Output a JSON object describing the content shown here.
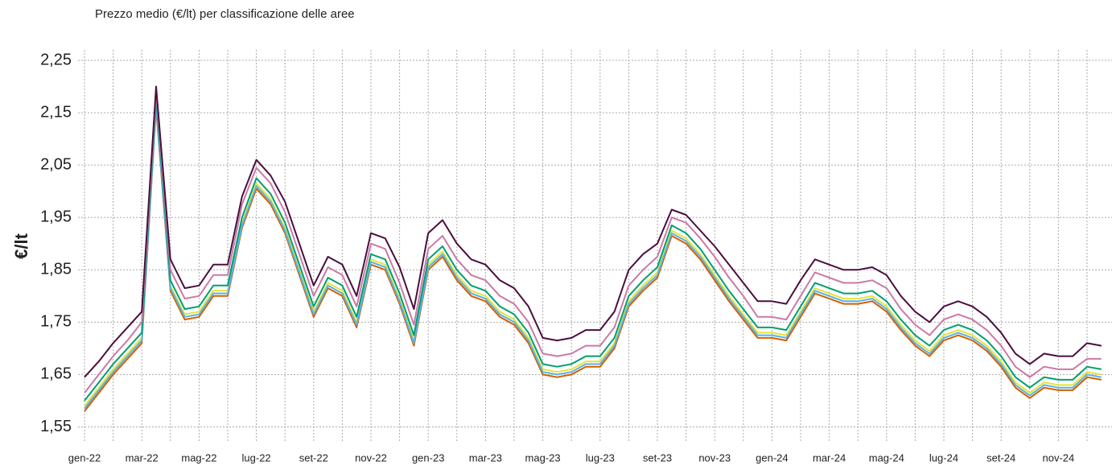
{
  "chart_data": {
    "type": "line",
    "title": "Prezzo medio (€/lt) per classificazione delle aree",
    "ylabel": "€/lt",
    "categories": [
      "gen-22",
      null,
      null,
      null,
      "mar-22",
      null,
      null,
      null,
      "mag-22",
      null,
      null,
      null,
      "lug-22",
      null,
      null,
      null,
      "set-22",
      null,
      null,
      null,
      "nov-22",
      null,
      null,
      null,
      "gen-23",
      null,
      null,
      null,
      "mar-23",
      null,
      null,
      null,
      "mag-23",
      null,
      null,
      null,
      "lug-23",
      null,
      null,
      null,
      "set-23",
      null,
      null,
      null,
      "nov-23",
      null,
      null,
      null,
      "gen-24",
      null,
      null,
      null,
      "mar-24",
      null,
      null,
      null,
      "mag-24",
      null,
      null,
      null,
      "lug-24",
      null,
      null,
      null,
      "set-24",
      null,
      null,
      null,
      "nov-24",
      null,
      null,
      null
    ],
    "ylim": [
      1.52,
      2.27
    ],
    "yticks": [
      {
        "value": 1.55,
        "label": "1,55"
      },
      {
        "value": 1.65,
        "label": "1,65"
      },
      {
        "value": 1.75,
        "label": "1,75"
      },
      {
        "value": 1.85,
        "label": "1,85"
      },
      {
        "value": 1.95,
        "label": "1,95"
      },
      {
        "value": 2.05,
        "label": "2,05"
      },
      {
        "value": 2.15,
        "label": "2,15"
      },
      {
        "value": 2.25,
        "label": "2,25"
      }
    ],
    "grid": true,
    "series": [
      {
        "color": "#d55e00",
        "values": [
          1.58,
          1.615,
          1.65,
          1.68,
          1.71,
          2.16,
          1.81,
          1.755,
          1.76,
          1.8,
          1.8,
          1.93,
          2.005,
          1.975,
          1.92,
          1.84,
          1.76,
          1.815,
          1.8,
          1.74,
          1.86,
          1.85,
          1.785,
          1.705,
          1.85,
          1.875,
          1.83,
          1.8,
          1.79,
          1.76,
          1.745,
          1.71,
          1.65,
          1.645,
          1.65,
          1.665,
          1.665,
          1.7,
          1.78,
          1.81,
          1.835,
          1.915,
          1.9,
          1.87,
          1.83,
          1.79,
          1.755,
          1.72,
          1.72,
          1.715,
          1.76,
          1.805,
          1.795,
          1.785,
          1.785,
          1.79,
          1.77,
          1.735,
          1.705,
          1.685,
          1.715,
          1.725,
          1.715,
          1.695,
          1.665,
          1.625,
          1.605,
          1.625,
          1.62,
          1.62,
          1.645,
          1.64
        ]
      },
      {
        "color": "#e8e337",
        "values": [
          1.59,
          1.625,
          1.66,
          1.69,
          1.72,
          2.17,
          1.82,
          1.765,
          1.77,
          1.81,
          1.81,
          1.94,
          2.015,
          1.985,
          1.93,
          1.85,
          1.77,
          1.825,
          1.81,
          1.75,
          1.87,
          1.86,
          1.795,
          1.715,
          1.86,
          1.885,
          1.84,
          1.81,
          1.8,
          1.77,
          1.755,
          1.72,
          1.66,
          1.655,
          1.66,
          1.675,
          1.675,
          1.71,
          1.79,
          1.82,
          1.845,
          1.925,
          1.91,
          1.88,
          1.84,
          1.8,
          1.765,
          1.73,
          1.73,
          1.725,
          1.77,
          1.815,
          1.805,
          1.795,
          1.795,
          1.8,
          1.78,
          1.745,
          1.715,
          1.695,
          1.725,
          1.735,
          1.725,
          1.705,
          1.675,
          1.635,
          1.615,
          1.635,
          1.63,
          1.63,
          1.655,
          1.65
        ]
      },
      {
        "color": "#56b4e9",
        "values": [
          1.585,
          1.62,
          1.655,
          1.685,
          1.715,
          2.165,
          1.815,
          1.76,
          1.765,
          1.805,
          1.805,
          1.935,
          2.01,
          1.98,
          1.925,
          1.845,
          1.765,
          1.82,
          1.805,
          1.745,
          1.865,
          1.855,
          1.79,
          1.71,
          1.855,
          1.88,
          1.835,
          1.805,
          1.795,
          1.765,
          1.75,
          1.715,
          1.655,
          1.65,
          1.655,
          1.67,
          1.67,
          1.705,
          1.785,
          1.815,
          1.84,
          1.92,
          1.905,
          1.875,
          1.835,
          1.795,
          1.76,
          1.725,
          1.725,
          1.72,
          1.765,
          1.81,
          1.8,
          1.79,
          1.79,
          1.795,
          1.775,
          1.74,
          1.71,
          1.69,
          1.72,
          1.73,
          1.72,
          1.7,
          1.67,
          1.63,
          1.61,
          1.63,
          1.625,
          1.625,
          1.65,
          1.645
        ]
      },
      {
        "color": "#009e73",
        "values": [
          1.6,
          1.635,
          1.67,
          1.7,
          1.73,
          2.18,
          1.83,
          1.775,
          1.78,
          1.82,
          1.82,
          1.95,
          2.025,
          1.995,
          1.94,
          1.86,
          1.78,
          1.835,
          1.82,
          1.76,
          1.88,
          1.87,
          1.805,
          1.725,
          1.87,
          1.895,
          1.85,
          1.82,
          1.81,
          1.78,
          1.765,
          1.73,
          1.67,
          1.665,
          1.67,
          1.685,
          1.685,
          1.72,
          1.8,
          1.83,
          1.855,
          1.935,
          1.92,
          1.89,
          1.85,
          1.81,
          1.775,
          1.74,
          1.74,
          1.735,
          1.78,
          1.825,
          1.815,
          1.805,
          1.805,
          1.81,
          1.79,
          1.755,
          1.725,
          1.705,
          1.735,
          1.745,
          1.735,
          1.715,
          1.685,
          1.645,
          1.625,
          1.645,
          1.64,
          1.64,
          1.665,
          1.66
        ]
      },
      {
        "color": "#cc79a7",
        "values": [
          1.615,
          1.65,
          1.685,
          1.715,
          1.75,
          2.19,
          1.85,
          1.795,
          1.8,
          1.84,
          1.84,
          1.975,
          2.045,
          2.015,
          1.96,
          1.88,
          1.8,
          1.855,
          1.84,
          1.78,
          1.9,
          1.89,
          1.825,
          1.745,
          1.89,
          1.915,
          1.87,
          1.84,
          1.83,
          1.8,
          1.785,
          1.75,
          1.69,
          1.685,
          1.69,
          1.705,
          1.705,
          1.74,
          1.82,
          1.85,
          1.875,
          1.95,
          1.94,
          1.91,
          1.875,
          1.835,
          1.8,
          1.76,
          1.76,
          1.755,
          1.8,
          1.845,
          1.835,
          1.825,
          1.825,
          1.83,
          1.815,
          1.775,
          1.745,
          1.725,
          1.755,
          1.765,
          1.755,
          1.735,
          1.705,
          1.665,
          1.645,
          1.665,
          1.66,
          1.66,
          1.68,
          1.68
        ]
      },
      {
        "color": "#4a0f3f",
        "values": [
          1.645,
          1.675,
          1.71,
          1.74,
          1.77,
          2.2,
          1.87,
          1.815,
          1.82,
          1.86,
          1.86,
          1.99,
          2.06,
          2.03,
          1.98,
          1.9,
          1.82,
          1.875,
          1.86,
          1.8,
          1.92,
          1.91,
          1.855,
          1.775,
          1.92,
          1.945,
          1.9,
          1.87,
          1.86,
          1.83,
          1.815,
          1.78,
          1.72,
          1.715,
          1.72,
          1.735,
          1.735,
          1.77,
          1.85,
          1.88,
          1.9,
          1.965,
          1.955,
          1.925,
          1.895,
          1.86,
          1.825,
          1.79,
          1.79,
          1.785,
          1.83,
          1.87,
          1.86,
          1.85,
          1.85,
          1.855,
          1.84,
          1.8,
          1.77,
          1.75,
          1.78,
          1.79,
          1.78,
          1.76,
          1.73,
          1.69,
          1.67,
          1.69,
          1.685,
          1.685,
          1.71,
          1.705
        ]
      }
    ]
  }
}
